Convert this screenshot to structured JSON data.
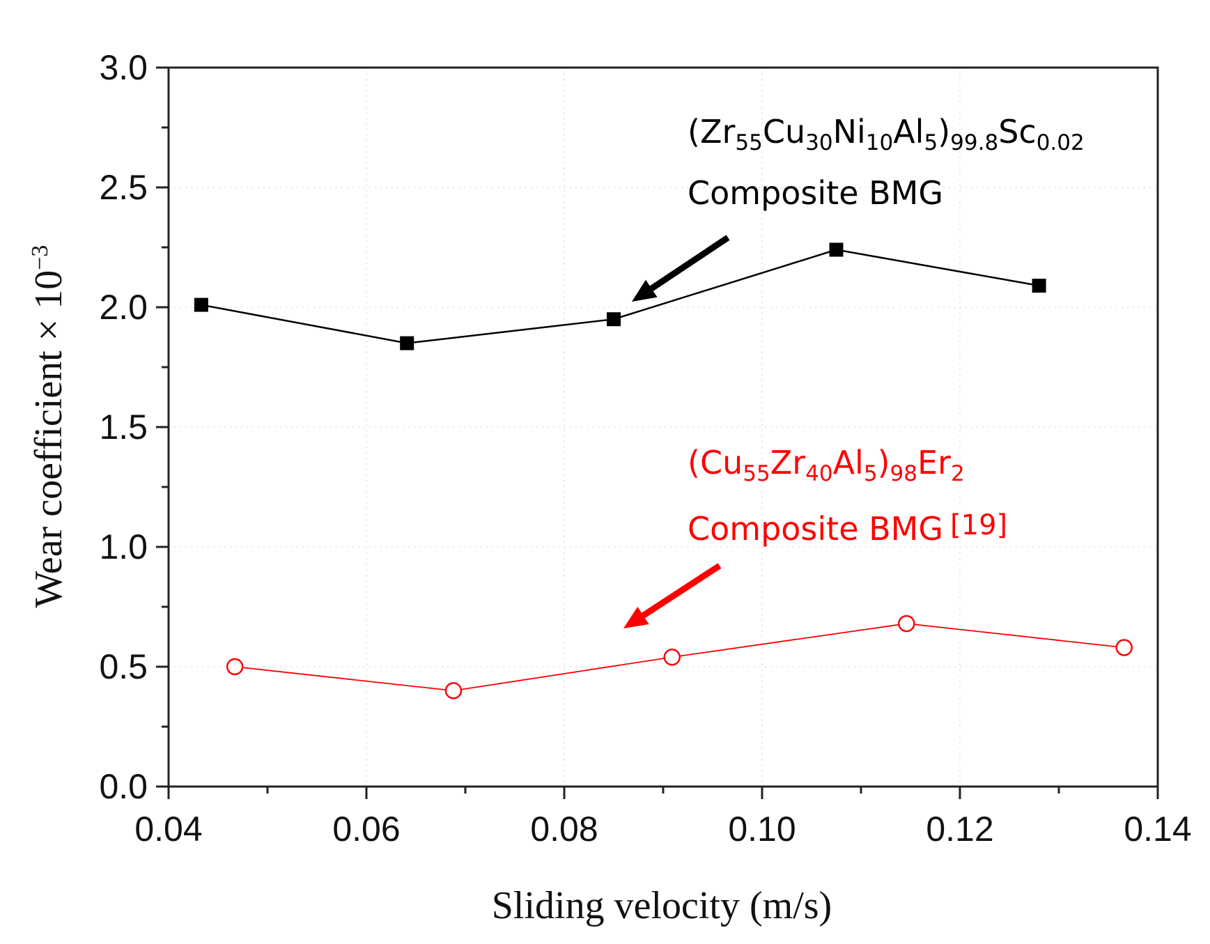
{
  "chart_data": {
    "type": "line",
    "title": "",
    "xlabel": "Sliding velocity (m/s)",
    "ylabel": "Wear coefficient × 10",
    "ylabel_exponent": "−3",
    "xlim": [
      0.04,
      0.14
    ],
    "ylim": [
      0.0,
      3.0
    ],
    "xticks": [
      0.04,
      0.06,
      0.08,
      0.1,
      0.12,
      0.14
    ],
    "xtick_labels": [
      "0.04",
      "0.06",
      "0.08",
      "0.10",
      "0.12",
      "0.14"
    ],
    "yticks": [
      0.0,
      0.5,
      1.0,
      1.5,
      2.0,
      2.5,
      3.0
    ],
    "ytick_labels": [
      "0.0",
      "0.5",
      "1.0",
      "1.5",
      "2.0",
      "2.5",
      "3.0"
    ],
    "grid": true,
    "series": [
      {
        "name": "(Zr55Cu30Ni10Al5)99.8Sc0.02 Composite BMG",
        "color": "#000000",
        "marker": "filled-square",
        "x": [
          0.0433,
          0.0641,
          0.085,
          0.1075,
          0.128
        ],
        "y": [
          2.01,
          1.85,
          1.95,
          2.24,
          2.09
        ]
      },
      {
        "name": "(Cu55Zr40Al5)98Er2 Composite BMG [19]",
        "color": "#ff0000",
        "marker": "open-circle",
        "x": [
          0.0467,
          0.0688,
          0.0909,
          0.1146,
          0.1366
        ],
        "y": [
          0.5,
          0.4,
          0.54,
          0.68,
          0.58
        ]
      }
    ],
    "annotations": [
      {
        "color": "#000000",
        "line1": [
          {
            "t": "(Zr",
            "sub": false
          },
          {
            "t": "55",
            "sub": true
          },
          {
            "t": "Cu",
            "sub": false
          },
          {
            "t": "30",
            "sub": true
          },
          {
            "t": "Ni",
            "sub": false
          },
          {
            "t": "10",
            "sub": true
          },
          {
            "t": "Al",
            "sub": false
          },
          {
            "t": "5",
            "sub": true
          },
          {
            "t": ")",
            "sub": false
          },
          {
            "t": "99.8",
            "sub": true
          },
          {
            "t": "Sc",
            "sub": false
          },
          {
            "t": "0.02",
            "sub": true
          }
        ],
        "line2": "Composite BMG",
        "ref": ""
      },
      {
        "color": "#ff0000",
        "line1": [
          {
            "t": "(Cu",
            "sub": false
          },
          {
            "t": "55",
            "sub": true
          },
          {
            "t": "Zr",
            "sub": false
          },
          {
            "t": "40",
            "sub": true
          },
          {
            "t": "Al",
            "sub": false
          },
          {
            "t": "5",
            "sub": true
          },
          {
            "t": ")",
            "sub": false
          },
          {
            "t": "98",
            "sub": true
          },
          {
            "t": "Er",
            "sub": false
          },
          {
            "t": "2",
            "sub": true
          }
        ],
        "line2": "Composite BMG",
        "ref": "[19]"
      }
    ]
  }
}
